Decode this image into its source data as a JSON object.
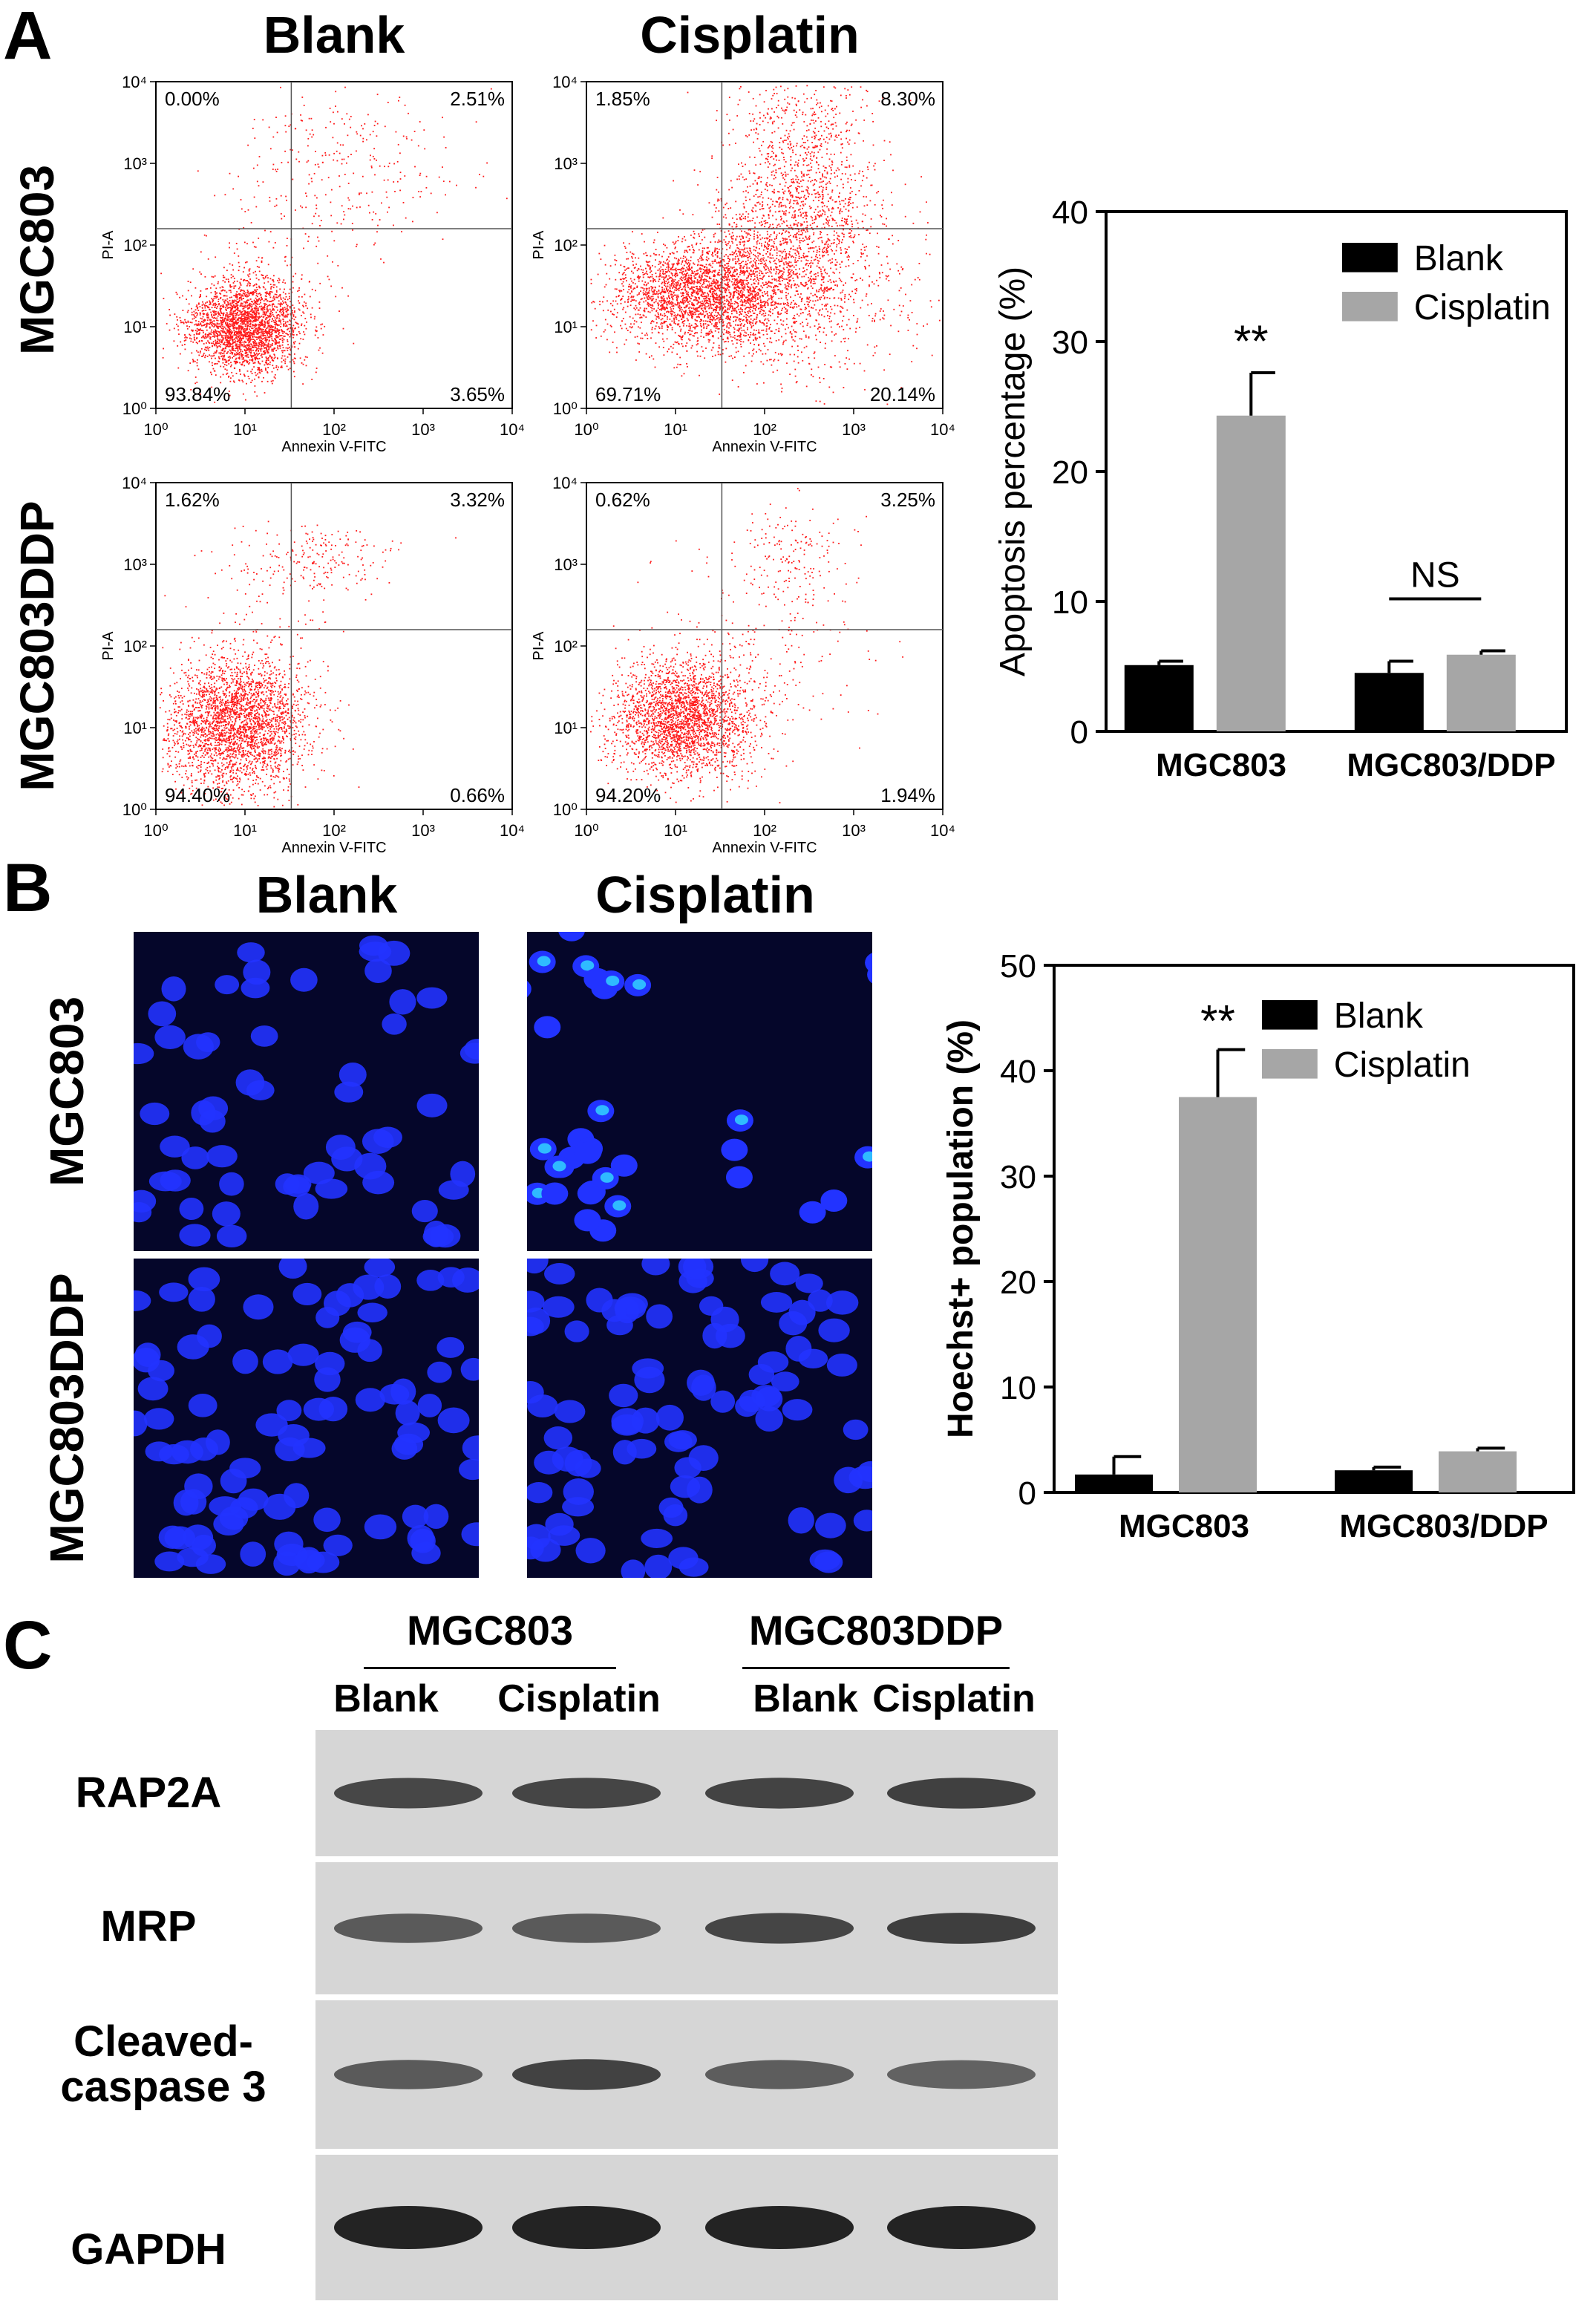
{
  "panels": {
    "A": "A",
    "B": "B",
    "C": "C"
  },
  "col_titles": {
    "blank": "Blank",
    "cisplatin": "Cisplatin"
  },
  "row_labels": {
    "mgc803": "MGC803",
    "mgc803ddp": "MGC803DDP"
  },
  "flow_axes": {
    "xlabel": "Annexin V-FITC",
    "ylabel": "PI-A",
    "ticks": [
      "10⁰",
      "10¹",
      "10²",
      "10³",
      "10⁴"
    ]
  },
  "flow_plots": [
    {
      "ul": "0.00%",
      "ur": "2.51%",
      "ll": "93.84%",
      "lr": "3.65%"
    },
    {
      "ul": "1.85%",
      "ur": "8.30%",
      "ll": "69.71%",
      "lr": "20.14%"
    },
    {
      "ul": "1.62%",
      "ur": "3.32%",
      "ll": "94.40%",
      "lr": "0.66%"
    },
    {
      "ul": "0.62%",
      "ur": "3.25%",
      "ll": "94.20%",
      "lr": "1.94%"
    }
  ],
  "colors": {
    "blank": "#000000",
    "cisplatin": "#a6a6a6",
    "dots": "#ff1a1a",
    "nuclei": "#2233ff",
    "nuclei_bright": "#33ddff",
    "micro_bg": "#05062a"
  },
  "chart_data": [
    {
      "type": "bar",
      "categories": [
        "MGC803",
        "MGC803/DDP"
      ],
      "series": [
        {
          "name": "Blank",
          "values": [
            5.1,
            4.5
          ],
          "errors": [
            0.3,
            0.9
          ]
        },
        {
          "name": "Cisplatin",
          "values": [
            24.3,
            5.9
          ],
          "errors": [
            3.3,
            0.3
          ]
        }
      ],
      "xlabel": "",
      "ylabel": "Apoptosis percentage (%)",
      "ylim": [
        0,
        40
      ],
      "yticks": [
        0,
        10,
        20,
        30,
        40
      ],
      "annotations": [
        "**",
        "NS"
      ],
      "legend": "top-right"
    },
    {
      "type": "bar",
      "categories": [
        "MGC803",
        "MGC803/DDP"
      ],
      "series": [
        {
          "name": "Blank",
          "values": [
            1.7,
            2.1
          ],
          "errors": [
            1.7,
            0.3
          ]
        },
        {
          "name": "Cisplatin",
          "values": [
            37.5,
            3.9
          ],
          "errors": [
            4.5,
            0.3
          ]
        }
      ],
      "xlabel": "",
      "ylabel": "Hoechst+ population (%)",
      "ylim": [
        0,
        50
      ],
      "yticks": [
        0,
        10,
        20,
        30,
        40,
        50
      ],
      "annotations": [
        "**"
      ],
      "legend": "top-right"
    }
  ],
  "western": {
    "group1": "MGC803",
    "group2": "MGC803DDP",
    "lanes": [
      "Blank",
      "Cisplatin",
      "Blank",
      "Cisplatin"
    ],
    "proteins": [
      {
        "name": "RAP2A",
        "intensity": [
          0.7,
          0.72,
          0.74,
          0.76
        ]
      },
      {
        "name": "MRP",
        "intensity": [
          0.55,
          0.55,
          0.72,
          0.78
        ]
      },
      {
        "name": "Cleaved-\ncaspase 3",
        "intensity": [
          0.55,
          0.75,
          0.52,
          0.48
        ]
      },
      {
        "name": "GAPDH",
        "intensity": [
          1.0,
          1.0,
          1.0,
          1.0
        ]
      }
    ]
  }
}
